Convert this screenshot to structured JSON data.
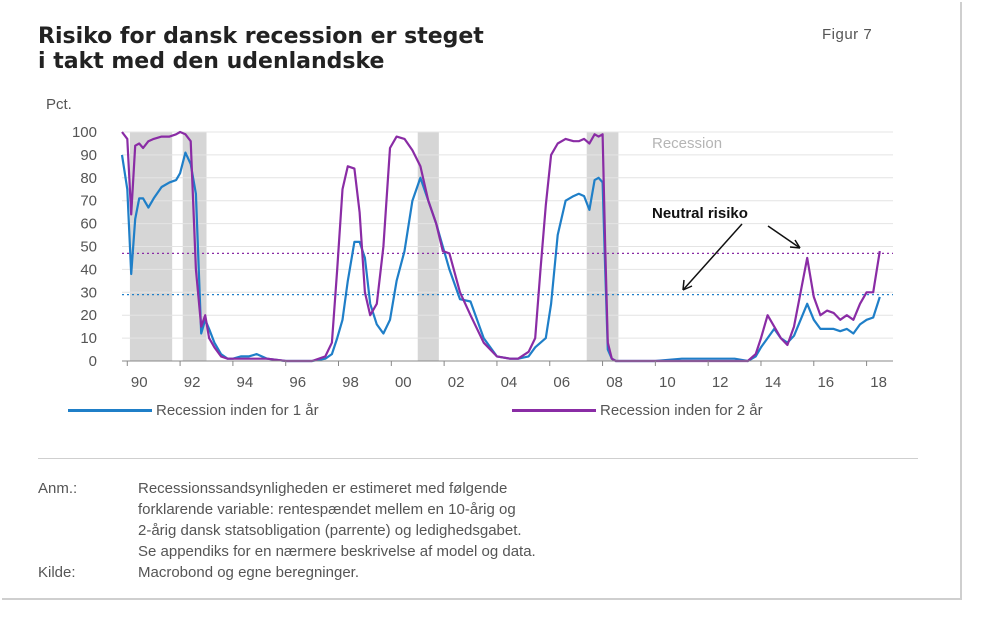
{
  "header": {
    "title_line1": "Risiko for dansk recession er steget",
    "title_line2": "i takt med den udenlandske",
    "figure_label": "Figur 7"
  },
  "chart_data": {
    "type": "line",
    "ylabel": "Pct.",
    "ylim": [
      0,
      100
    ],
    "yticks": [
      0,
      10,
      20,
      30,
      40,
      50,
      60,
      70,
      80,
      90,
      100
    ],
    "xlim": [
      1989.8,
      2019.0
    ],
    "xtick_values": [
      1990,
      1992,
      1994,
      1996,
      1998,
      2000,
      2002,
      2004,
      2006,
      2008,
      2010,
      2012,
      2014,
      2016,
      2018
    ],
    "xtick_labels": [
      "90",
      "92",
      "94",
      "96",
      "98",
      "00",
      "02",
      "04",
      "06",
      "08",
      "10",
      "12",
      "14",
      "16",
      "18"
    ],
    "recession_label": "Recession",
    "recession_periods": [
      [
        1990.1,
        1991.7
      ],
      [
        1992.1,
        1993.0
      ],
      [
        2001.0,
        2001.8
      ],
      [
        2007.4,
        2008.6
      ]
    ],
    "recession_color": "#d6d6d6",
    "neutral": {
      "label": "Neutral risiko",
      "lines": [
        {
          "series": "Recession inden for 1 år",
          "value": 29
        },
        {
          "series": "Recession inden for 2 år",
          "value": 47
        }
      ]
    },
    "series": [
      {
        "name": "Recession inden for 1 år",
        "color": "#1f7fc8",
        "x": [
          1989.8,
          1990.0,
          1990.15,
          1990.3,
          1990.45,
          1990.6,
          1990.8,
          1991.0,
          1991.3,
          1991.6,
          1991.85,
          1992.0,
          1992.2,
          1992.4,
          1992.6,
          1992.8,
          1992.95,
          1993.1,
          1993.3,
          1993.55,
          1993.8,
          1994.0,
          1994.3,
          1994.6,
          1994.9,
          1995.3,
          1996.0,
          1997.0,
          1997.5,
          1997.75,
          1997.95,
          1998.15,
          1998.35,
          1998.6,
          1998.8,
          1999.0,
          1999.2,
          1999.45,
          1999.7,
          1999.95,
          2000.2,
          2000.5,
          2000.8,
          2001.1,
          2001.4,
          2001.7,
          2001.95,
          2002.2,
          2002.6,
          2003.0,
          2003.5,
          2004.0,
          2004.5,
          2004.8,
          2005.2,
          2005.45,
          2005.65,
          2005.85,
          2006.05,
          2006.3,
          2006.6,
          2006.9,
          2007.1,
          2007.3,
          2007.5,
          2007.7,
          2007.85,
          2008.0,
          2008.1,
          2008.2,
          2008.35,
          2008.5,
          2008.7,
          2009.0,
          2009.5,
          2010.0,
          2011.0,
          2012.0,
          2013.0,
          2013.5,
          2013.8,
          2014.0,
          2014.25,
          2014.5,
          2014.75,
          2015.0,
          2015.25,
          2015.5,
          2015.75,
          2016.0,
          2016.25,
          2016.5,
          2016.75,
          2017.0,
          2017.25,
          2017.5,
          2017.75,
          2018.0,
          2018.25,
          2018.5,
          2018.7
        ],
        "y": [
          90,
          75,
          38,
          62,
          71,
          71,
          67,
          71,
          76,
          78,
          79,
          82,
          91,
          86,
          73,
          12,
          18,
          14,
          8,
          3,
          1,
          1,
          2,
          2,
          3,
          1,
          0,
          0,
          1,
          3,
          10,
          18,
          35,
          52,
          52,
          45,
          25,
          16,
          12,
          18,
          35,
          48,
          70,
          80,
          70,
          60,
          50,
          40,
          27,
          26,
          10,
          2,
          1,
          1,
          2,
          6,
          8,
          10,
          25,
          55,
          70,
          72,
          73,
          72,
          66,
          79,
          80,
          78,
          40,
          5,
          1,
          0,
          0,
          0,
          0,
          0,
          1,
          1,
          1,
          0,
          2,
          6,
          10,
          14,
          10,
          8,
          11,
          18,
          25,
          18,
          14,
          14,
          14,
          13,
          14,
          12,
          16,
          18,
          19,
          28,
          null
        ],
        "x_end": 2018.7
      },
      {
        "name": "Recession inden for 2 år",
        "color": "#8a2ca5",
        "x": [
          1989.8,
          1990.0,
          1990.15,
          1990.3,
          1990.45,
          1990.6,
          1990.8,
          1991.0,
          1991.3,
          1991.6,
          1991.85,
          1992.0,
          1992.2,
          1992.4,
          1992.6,
          1992.8,
          1992.95,
          1993.1,
          1993.3,
          1993.55,
          1993.8,
          1994.0,
          1994.3,
          1994.6,
          1994.9,
          1995.3,
          1996.0,
          1997.0,
          1997.5,
          1997.75,
          1997.95,
          1998.15,
          1998.35,
          1998.6,
          1998.8,
          1999.0,
          1999.2,
          1999.45,
          1999.7,
          1999.95,
          2000.2,
          2000.5,
          2000.8,
          2001.1,
          2001.4,
          2001.7,
          2001.95,
          2002.2,
          2002.6,
          2003.0,
          2003.5,
          2004.0,
          2004.5,
          2004.8,
          2005.2,
          2005.45,
          2005.65,
          2005.85,
          2006.05,
          2006.3,
          2006.6,
          2006.9,
          2007.1,
          2007.3,
          2007.5,
          2007.7,
          2007.85,
          2008.0,
          2008.1,
          2008.2,
          2008.35,
          2008.5,
          2008.7,
          2009.0,
          2009.5,
          2010.0,
          2011.0,
          2012.0,
          2013.0,
          2013.5,
          2013.8,
          2014.0,
          2014.25,
          2014.5,
          2014.75,
          2015.0,
          2015.25,
          2015.5,
          2015.75,
          2016.0,
          2016.25,
          2016.5,
          2016.75,
          2017.0,
          2017.25,
          2017.5,
          2017.75,
          2018.0,
          2018.25,
          2018.5,
          2018.7
        ],
        "y": [
          100,
          97,
          64,
          94,
          95,
          93,
          96,
          97,
          98,
          98,
          99,
          100,
          99,
          96,
          40,
          15,
          20,
          10,
          6,
          2,
          1,
          1,
          1,
          1,
          1,
          1,
          0,
          0,
          2,
          8,
          40,
          75,
          85,
          84,
          65,
          30,
          20,
          25,
          50,
          93,
          98,
          97,
          92,
          85,
          70,
          60,
          48,
          47,
          30,
          20,
          8,
          2,
          1,
          1,
          4,
          10,
          40,
          68,
          90,
          95,
          97,
          96,
          96,
          97,
          95,
          99,
          98,
          99,
          50,
          8,
          1,
          0,
          0,
          0,
          0,
          0,
          0,
          0,
          0,
          0,
          3,
          10,
          20,
          15,
          10,
          7,
          15,
          30,
          45,
          28,
          20,
          22,
          21,
          18,
          20,
          18,
          25,
          30,
          30,
          48,
          null
        ],
        "x_end": 2018.7
      }
    ],
    "legend": {
      "placement": "bottom"
    },
    "grid": "horizontal"
  },
  "legend": {
    "item1": "Recession inden for 1 år",
    "item2": "Recession inden for 2 år"
  },
  "notes": {
    "anm_label": "Anm.:",
    "anm_lines": [
      "Recessionssandsynligheden er estimeret med følgende",
      "forklarende variable: rentespændet mellem en 10-årig og",
      "2-årig dansk statsobligation (parrente) og ledighedsgabet.",
      "Se appendiks for en nærmere beskrivelse af model og data."
    ],
    "kilde_label": "Kilde:",
    "kilde_text": "Macrobond og egne beregninger."
  }
}
